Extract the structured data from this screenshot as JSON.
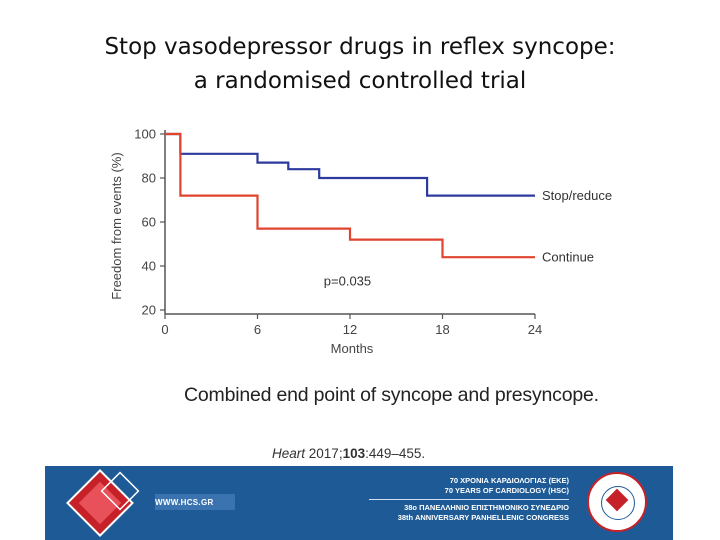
{
  "title": {
    "line1": "Stop vasodepressor drugs in reflex syncope:",
    "line2": "a randomised controlled trial"
  },
  "chart_data": {
    "type": "line",
    "step": true,
    "xlabel": "Months",
    "ylabel": "Freedom from events (%)",
    "xlim": [
      0,
      24
    ],
    "ylim": [
      20,
      100
    ],
    "xticks": [
      0,
      6,
      12,
      18,
      24
    ],
    "yticks": [
      20,
      40,
      60,
      80,
      100
    ],
    "grid": false,
    "legend": "inline-right",
    "series": [
      {
        "name": "Stop/reduce",
        "color": "#2b3a9c",
        "x": [
          0,
          1,
          1,
          6,
          6,
          8,
          8,
          10,
          10,
          17,
          17,
          24
        ],
        "y": [
          100,
          100,
          91,
          91,
          87,
          87,
          84,
          84,
          80,
          80,
          72,
          72
        ]
      },
      {
        "name": "Continue",
        "color": "#e0442e",
        "x": [
          0,
          1,
          1,
          6,
          6,
          12,
          12,
          18,
          18,
          24
        ],
        "y": [
          100,
          100,
          72,
          72,
          57,
          57,
          52,
          52,
          44,
          44
        ]
      }
    ],
    "annotation": "p=0.035"
  },
  "caption": "Combined end point of syncope and presyncope.",
  "citation": {
    "journal": "Heart",
    "year": "2017;",
    "volume": "103",
    "pages": ":449–455."
  },
  "footer": {
    "website": "WWW.HCS.GR",
    "line1": "70 ΧΡΟΝΙΑ ΚΑΡΔΙΟΛΟΓΙΑΣ (ΕΚΕ)",
    "line2": "70 YEARS OF CARDIOLOGY (HSC)",
    "line3": "38ο ΠΑΝΕΛΛΗΝΙΟ ΕΠΙΣΤΗΜΟΝΙΚΟ ΣΥΝΕΔΡΙΟ",
    "line4": "38th ANNIVERSARY PANHELLENIC CONGRESS",
    "bg": "#1e5b96",
    "accent": "#c62128"
  }
}
